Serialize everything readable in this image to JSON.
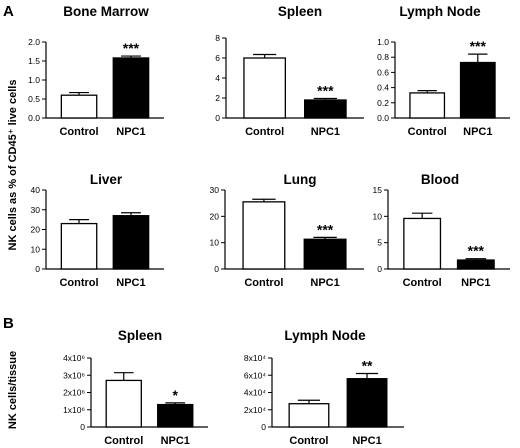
{
  "figure": {
    "panels": [
      "A",
      "B"
    ],
    "ylabel_A": "NK cells as % of CD45⁺ live cells",
    "ylabel_B": "NK cells/tissue"
  },
  "chart_data": [
    {
      "type": "bar",
      "panel": "A",
      "title": "Bone Marrow",
      "categories": [
        "Control",
        "NPC1"
      ],
      "values": [
        0.6,
        1.58
      ],
      "errors": [
        0.07,
        0.05
      ],
      "fills": [
        "#ffffff",
        "#000000"
      ],
      "ylim": [
        0,
        2.0
      ],
      "yticks": [
        0.0,
        0.5,
        1.0,
        1.5,
        2.0
      ],
      "tick_labels": [
        "0.0",
        "0.5",
        "1.0",
        "1.5",
        "2.0"
      ],
      "significance": [
        "",
        "***"
      ]
    },
    {
      "type": "bar",
      "panel": "A",
      "title": "Spleen",
      "categories": [
        "Control",
        "NPC1"
      ],
      "values": [
        6.0,
        1.8
      ],
      "errors": [
        0.35,
        0.15
      ],
      "fills": [
        "#ffffff",
        "#000000"
      ],
      "ylim": [
        0,
        8
      ],
      "yticks": [
        0,
        2,
        4,
        6,
        8
      ],
      "tick_labels": [
        "0",
        "2",
        "4",
        "6",
        "8"
      ],
      "significance": [
        "",
        "***"
      ]
    },
    {
      "type": "bar",
      "panel": "A",
      "title": "Lymph Node",
      "categories": [
        "Control",
        "NPC1"
      ],
      "values": [
        0.33,
        0.73
      ],
      "errors": [
        0.03,
        0.11
      ],
      "fills": [
        "#ffffff",
        "#000000"
      ],
      "ylim": [
        0,
        1.0
      ],
      "yticks": [
        0.0,
        0.2,
        0.4,
        0.6,
        0.8,
        1.0
      ],
      "tick_labels": [
        "0.0",
        "0.2",
        "0.4",
        "0.6",
        "0.8",
        "1.0"
      ],
      "significance": [
        "",
        "***"
      ]
    },
    {
      "type": "bar",
      "panel": "A",
      "title": "Liver",
      "categories": [
        "Control",
        "NPC1"
      ],
      "values": [
        23,
        27
      ],
      "errors": [
        2,
        1.5
      ],
      "fills": [
        "#ffffff",
        "#000000"
      ],
      "ylim": [
        0,
        40
      ],
      "yticks": [
        0,
        10,
        20,
        30,
        40
      ],
      "tick_labels": [
        "0",
        "10",
        "20",
        "30",
        "40"
      ],
      "significance": [
        "",
        ""
      ]
    },
    {
      "type": "bar",
      "panel": "A",
      "title": "Lung",
      "categories": [
        "Control",
        "NPC1"
      ],
      "values": [
        25.5,
        11.3
      ],
      "errors": [
        1.0,
        0.7
      ],
      "fills": [
        "#ffffff",
        "#000000"
      ],
      "ylim": [
        0,
        30
      ],
      "yticks": [
        0,
        10,
        20,
        30
      ],
      "tick_labels": [
        "0",
        "10",
        "20",
        "30"
      ],
      "significance": [
        "",
        "***"
      ]
    },
    {
      "type": "bar",
      "panel": "A",
      "title": "Blood",
      "categories": [
        "Control",
        "NPC1"
      ],
      "values": [
        9.6,
        1.7
      ],
      "errors": [
        1.0,
        0.25
      ],
      "fills": [
        "#ffffff",
        "#000000"
      ],
      "ylim": [
        0,
        15
      ],
      "yticks": [
        0,
        5,
        10,
        15
      ],
      "tick_labels": [
        "0",
        "5",
        "10",
        "15"
      ],
      "significance": [
        "",
        "***"
      ]
    },
    {
      "type": "bar",
      "panel": "B",
      "title": "Spleen",
      "categories": [
        "Control",
        "NPC1"
      ],
      "values": [
        2700000.0,
        1300000.0
      ],
      "errors": [
        450000.0,
        100000.0
      ],
      "fills": [
        "#ffffff",
        "#000000"
      ],
      "ylim": [
        0,
        4000000.0
      ],
      "yticks": [
        0,
        1000000.0,
        2000000.0,
        3000000.0,
        4000000.0
      ],
      "tick_labels": [
        "0",
        "1x10⁶",
        "2x10⁶",
        "3x10⁶",
        "4x10⁶"
      ],
      "significance": [
        "",
        "*"
      ]
    },
    {
      "type": "bar",
      "panel": "B",
      "title": "Lymph Node",
      "categories": [
        "Control",
        "NPC1"
      ],
      "values": [
        27000.0,
        56000.0
      ],
      "errors": [
        4000.0,
        6000.0
      ],
      "fills": [
        "#ffffff",
        "#000000"
      ],
      "ylim": [
        0,
        80000.0
      ],
      "yticks": [
        0,
        20000.0,
        40000.0,
        60000.0,
        80000.0
      ],
      "tick_labels": [
        "0",
        "2x10⁴",
        "4x10⁴",
        "6x10⁴",
        "8x10⁴"
      ],
      "significance": [
        "",
        "**"
      ]
    }
  ]
}
